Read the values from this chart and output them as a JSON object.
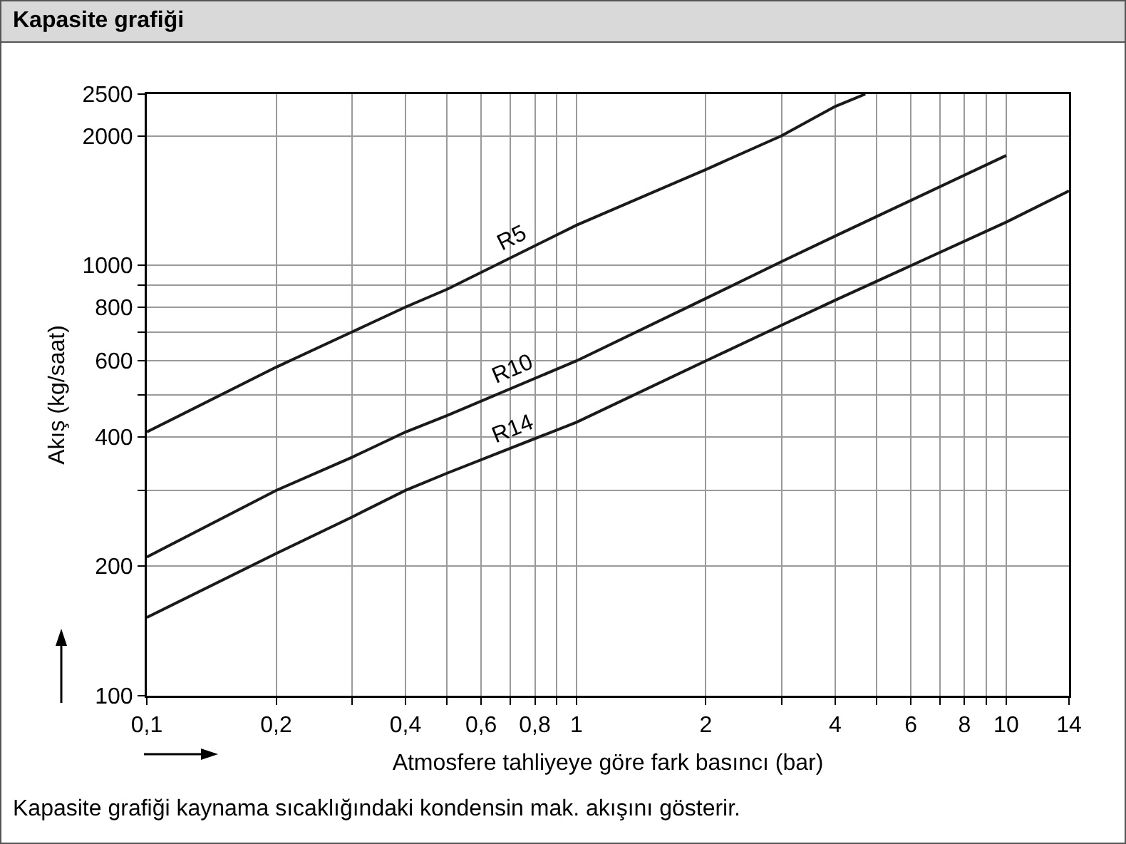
{
  "chart_data": {
    "type": "line",
    "title": "Kapasite grafiği",
    "xlabel": "Atmosfere tahliyeye göre fark basıncı (bar)",
    "ylabel": "Akış (kg/saat)",
    "log": "xy",
    "grid": true,
    "legend": false,
    "marker": "none",
    "line_style": "solid",
    "xlim": [
      0.1,
      14
    ],
    "ylim": [
      100,
      2500
    ],
    "xticks": [
      {
        "value": 0.1,
        "label": "0,1"
      },
      {
        "value": 0.2,
        "label": "0,2"
      },
      {
        "value": 0.3,
        "label": null
      },
      {
        "value": 0.4,
        "label": "0,4"
      },
      {
        "value": 0.5,
        "label": null
      },
      {
        "value": 0.6,
        "label": "0,6"
      },
      {
        "value": 0.7,
        "label": null
      },
      {
        "value": 0.8,
        "label": "0,8"
      },
      {
        "value": 0.9,
        "label": null
      },
      1,
      2,
      {
        "value": 3,
        "label": null
      },
      4,
      {
        "value": 5,
        "label": null
      },
      6,
      {
        "value": 7,
        "label": null
      },
      8,
      {
        "value": 9,
        "label": null
      },
      10,
      14
    ],
    "yticks": [
      100,
      200,
      {
        "value": 300,
        "label": null
      },
      400,
      {
        "value": 500,
        "label": null
      },
      600,
      {
        "value": 700,
        "label": null
      },
      800,
      {
        "value": 900,
        "label": null
      },
      1000,
      2000,
      2500
    ],
    "series": [
      {
        "name": "R5",
        "color": "#1a1a1a",
        "x": [
          0.1,
          0.2,
          0.3,
          0.4,
          0.5,
          1,
          2,
          3,
          4,
          4.7
        ],
        "values": [
          410,
          580,
          700,
          800,
          880,
          1240,
          1670,
          2000,
          2340,
          2500
        ]
      },
      {
        "name": "R10",
        "color": "#1a1a1a",
        "x": [
          0.1,
          0.2,
          0.3,
          0.4,
          0.5,
          1,
          2,
          3,
          4,
          10
        ],
        "values": [
          210,
          300,
          358,
          410,
          448,
          600,
          838,
          1020,
          1170,
          1800
        ]
      },
      {
        "name": "R14",
        "color": "#1a1a1a",
        "x": [
          0.1,
          0.2,
          0.3,
          0.4,
          0.5,
          1,
          2,
          3,
          4,
          10,
          14
        ],
        "values": [
          152,
          214,
          260,
          300,
          329,
          432,
          600,
          726,
          830,
          1260,
          1490
        ]
      }
    ],
    "annotations": [
      "Kapasite grafiği kaynama sıcaklığındaki kondensin mak. akışını gösterir."
    ]
  }
}
